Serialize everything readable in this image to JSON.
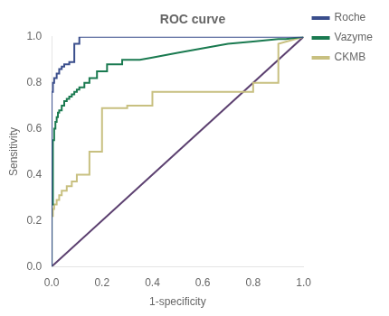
{
  "chart_data": {
    "type": "line",
    "title": "ROC curve",
    "xlabel": "1-specificity",
    "ylabel": "Sensitivity",
    "xlim": [
      0.0,
      1.0
    ],
    "ylim": [
      0.0,
      1.0
    ],
    "xticks": [
      {
        "value": 0,
        "label": "0.0"
      },
      0.2,
      0.4,
      0.6,
      0.8,
      {
        "value": 1,
        "label": "1.0"
      }
    ],
    "yticks": [
      {
        "value": 0,
        "label": "0.0"
      },
      0.2,
      0.4,
      0.6,
      0.8,
      {
        "value": 1,
        "label": "1.0"
      }
    ],
    "grid": false,
    "legend": "right",
    "series": [
      {
        "name": "Roche",
        "color": "#3a4e8c",
        "x": [
          0.0,
          0.0,
          0.005,
          0.005,
          0.01,
          0.01,
          0.02,
          0.02,
          0.03,
          0.03,
          0.04,
          0.04,
          0.05,
          0.05,
          0.06,
          0.06,
          0.07,
          0.07,
          0.08,
          0.08,
          0.09,
          0.09,
          0.1,
          0.1,
          0.11,
          0.11,
          0.13,
          0.13,
          1.0
        ],
        "values": [
          0.0,
          0.76,
          0.76,
          0.8,
          0.8,
          0.82,
          0.82,
          0.84,
          0.84,
          0.86,
          0.86,
          0.87,
          0.87,
          0.88,
          0.88,
          0.88,
          0.88,
          0.89,
          0.89,
          0.89,
          0.89,
          0.97,
          0.97,
          0.97,
          0.97,
          1.0,
          1.0,
          1.0,
          1.0
        ]
      },
      {
        "name": "Vazyme",
        "color": "#1a7a50",
        "x": [
          0.0,
          0.0,
          0.005,
          0.005,
          0.01,
          0.01,
          0.015,
          0.015,
          0.02,
          0.02,
          0.025,
          0.025,
          0.03,
          0.03,
          0.04,
          0.04,
          0.05,
          0.05,
          0.06,
          0.06,
          0.07,
          0.07,
          0.08,
          0.08,
          0.09,
          0.09,
          0.1,
          0.1,
          0.11,
          0.11,
          0.13,
          0.13,
          0.15,
          0.15,
          0.18,
          0.18,
          0.22,
          0.22,
          0.28,
          0.28,
          0.35,
          0.4,
          0.5,
          0.6,
          0.7,
          0.8,
          0.9,
          0.93,
          1.0
        ],
        "values": [
          0.0,
          0.27,
          0.27,
          0.55,
          0.55,
          0.6,
          0.6,
          0.63,
          0.63,
          0.65,
          0.65,
          0.67,
          0.67,
          0.68,
          0.68,
          0.7,
          0.7,
          0.72,
          0.72,
          0.73,
          0.73,
          0.74,
          0.74,
          0.75,
          0.75,
          0.76,
          0.76,
          0.77,
          0.77,
          0.78,
          0.78,
          0.8,
          0.8,
          0.82,
          0.82,
          0.85,
          0.85,
          0.88,
          0.88,
          0.9,
          0.9,
          0.91,
          0.93,
          0.95,
          0.97,
          0.98,
          0.99,
          0.99,
          1.0
        ]
      },
      {
        "name": "CKMB",
        "color": "#c8c080",
        "x": [
          0.0,
          0.0,
          0.005,
          0.005,
          0.01,
          0.01,
          0.02,
          0.02,
          0.03,
          0.03,
          0.04,
          0.04,
          0.06,
          0.06,
          0.08,
          0.08,
          0.1,
          0.1,
          0.15,
          0.15,
          0.2,
          0.2,
          0.3,
          0.3,
          0.4,
          0.4,
          0.5,
          0.6,
          0.7,
          0.8,
          0.8,
          0.9,
          0.9,
          1.0
        ],
        "values": [
          0.0,
          0.22,
          0.22,
          0.25,
          0.25,
          0.27,
          0.27,
          0.29,
          0.29,
          0.31,
          0.31,
          0.33,
          0.33,
          0.35,
          0.35,
          0.37,
          0.37,
          0.4,
          0.4,
          0.5,
          0.5,
          0.69,
          0.69,
          0.7,
          0.7,
          0.76,
          0.76,
          0.76,
          0.76,
          0.76,
          0.8,
          0.8,
          0.97,
          1.0
        ]
      },
      {
        "color": "#5c4070",
        "x": [
          0,
          1
        ],
        "values": [
          0,
          1
        ]
      }
    ]
  }
}
